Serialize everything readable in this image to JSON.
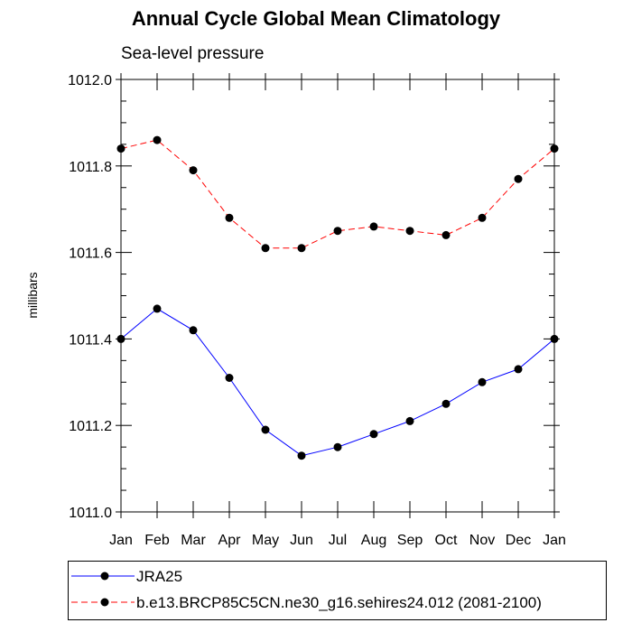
{
  "chart_data": {
    "type": "line",
    "title": "Annual Cycle Global Mean Climatology",
    "subtitle": "Sea-level pressure",
    "ylabel": "millibars",
    "ylim": [
      1011.0,
      1012.0
    ],
    "yticks": [
      "1011.0",
      "1011.2",
      "1011.4",
      "1011.6",
      "1011.8",
      "1012.0"
    ],
    "categories": [
      "Jan",
      "Feb",
      "Mar",
      "Apr",
      "May",
      "Jun",
      "Jul",
      "Aug",
      "Sep",
      "Oct",
      "Nov",
      "Dec",
      "Jan"
    ],
    "series": [
      {
        "name": "JRA25",
        "color": "#0000ff",
        "dash": "solid",
        "values": [
          1011.4,
          1011.47,
          1011.42,
          1011.31,
          1011.19,
          1011.13,
          1011.15,
          1011.18,
          1011.21,
          1011.25,
          1011.3,
          1011.33,
          1011.4
        ]
      },
      {
        "name": "b.e13.BRCP85C5CN.ne30_g16.sehires24.012 (2081-2100)",
        "color": "#ff0000",
        "dash": "dashed",
        "values": [
          1011.84,
          1011.86,
          1011.79,
          1011.68,
          1011.61,
          1011.61,
          1011.65,
          1011.66,
          1011.65,
          1011.64,
          1011.68,
          1011.77,
          1011.84
        ]
      }
    ],
    "grid": false,
    "legend_position": "bottom"
  }
}
